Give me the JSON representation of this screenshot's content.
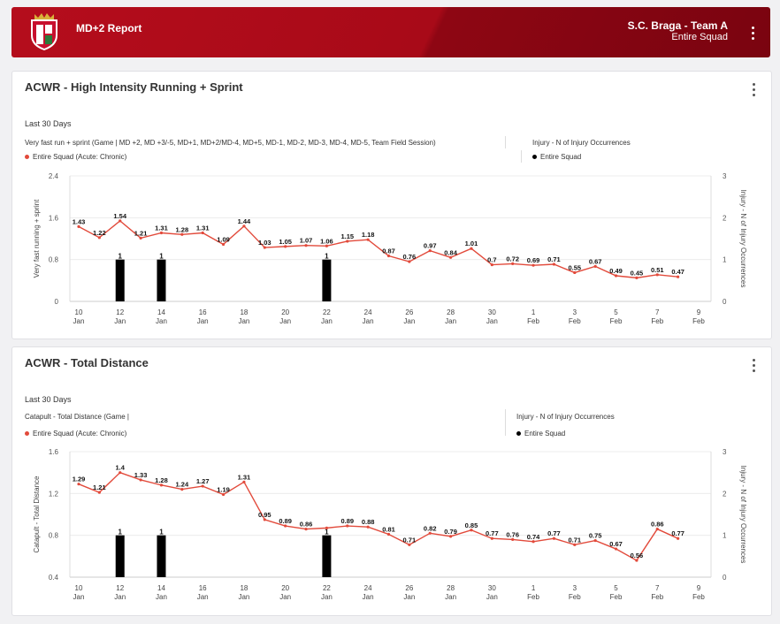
{
  "header": {
    "title": "MD+2 Report",
    "team": "S.C. Braga - Team A",
    "squad": "Entire Squad"
  },
  "colors": {
    "header_red": "#b50d1c",
    "series_line": "#e24a3b",
    "bar": "#000000"
  },
  "icons": {
    "crest": "club-crest-icon",
    "menu": "kebab-menu-icon"
  },
  "cards": [
    {
      "title": "ACWR - High Intensity Running + Sprint",
      "period": "Last 30 Days",
      "metric_desc": "Very fast run + sprint (Game | MD +2, MD +3/-5, MD+1, MD+2/MD-4, MD+5, MD-1, MD-2, MD-3, MD-4, MD-5, Team Field Session)",
      "legend_left": "Entire Squad (Acute: Chronic)",
      "injury_title": "Injury - N of Injury Occurrences",
      "legend_right": "Entire Squad"
    },
    {
      "title": "ACWR - Total Distance",
      "period": "Last 30 Days",
      "metric_desc": "Catapult - Total Distance (Game |",
      "legend_left": "Entire Squad (Acute: Chronic)",
      "injury_title": "Injury - N of Injury Occurrences",
      "legend_right": "Entire Squad"
    }
  ],
  "chart_data": [
    {
      "type": "line",
      "ylabel": "Very fast running + sprint",
      "y2label": "Injury - N of Injury Occurrences",
      "ylim": [
        0,
        2.4
      ],
      "yticks": [
        "0",
        "0.8",
        "1.6",
        "2.4"
      ],
      "y2lim": [
        0,
        3
      ],
      "y2ticks": [
        "0",
        "1",
        "2",
        "3"
      ],
      "xticks": [
        [
          "10",
          "Jan"
        ],
        [
          "12",
          "Jan"
        ],
        [
          "14",
          "Jan"
        ],
        [
          "16",
          "Jan"
        ],
        [
          "18",
          "Jan"
        ],
        [
          "20",
          "Jan"
        ],
        [
          "22",
          "Jan"
        ],
        [
          "24",
          "Jan"
        ],
        [
          "26",
          "Jan"
        ],
        [
          "28",
          "Jan"
        ],
        [
          "30",
          "Jan"
        ],
        [
          "1",
          "Feb"
        ],
        [
          "3",
          "Feb"
        ],
        [
          "5",
          "Feb"
        ],
        [
          "7",
          "Feb"
        ],
        [
          "9",
          "Feb"
        ]
      ],
      "grid": true,
      "series": [
        {
          "values": [
            {
              "x": "2024-01-10",
              "y": 1.43,
              "label": "1.43"
            },
            {
              "x": "2024-01-11",
              "y": 1.22,
              "label": "1.22"
            },
            {
              "x": "2024-01-12",
              "y": 1.54,
              "label": "1.54"
            },
            {
              "x": "2024-01-13",
              "y": 1.21,
              "label": "1.21"
            },
            {
              "x": "2024-01-14",
              "y": 1.31,
              "label": "1.31"
            },
            {
              "x": "2024-01-15",
              "y": 1.28,
              "label": "1.28"
            },
            {
              "x": "2024-01-16",
              "y": 1.31,
              "label": "1.31"
            },
            {
              "x": "2024-01-17",
              "y": 1.09,
              "label": "1.09"
            },
            {
              "x": "2024-01-18",
              "y": 1.44,
              "label": "1.44"
            },
            {
              "x": "2024-01-19",
              "y": 1.03,
              "label": "1.03"
            },
            {
              "x": "2024-01-20",
              "y": 1.05,
              "label": "1.05"
            },
            {
              "x": "2024-01-21",
              "y": 1.07,
              "label": "1.07"
            },
            {
              "x": "2024-01-22",
              "y": 1.06,
              "label": "1.06"
            },
            {
              "x": "2024-01-23",
              "y": 1.15,
              "label": "1.15"
            },
            {
              "x": "2024-01-24",
              "y": 1.18,
              "label": "1.18"
            },
            {
              "x": "2024-01-25",
              "y": 0.87,
              "label": "0.87"
            },
            {
              "x": "2024-01-26",
              "y": 0.76,
              "label": "0.76"
            },
            {
              "x": "2024-01-27",
              "y": 0.97,
              "label": "0.97"
            },
            {
              "x": "2024-01-28",
              "y": 0.84,
              "label": "0.84"
            },
            {
              "x": "2024-01-29",
              "y": 1.01,
              "label": "1.01"
            },
            {
              "x": "2024-01-30",
              "y": 0.7,
              "label": "0.7"
            },
            {
              "x": "2024-01-31",
              "y": 0.72,
              "label": "0.72"
            },
            {
              "x": "2024-02-01",
              "y": 0.69,
              "label": "0.69"
            },
            {
              "x": "2024-02-02",
              "y": 0.71,
              "label": "0.71"
            },
            {
              "x": "2024-02-03",
              "y": 0.55,
              "label": "0.55"
            },
            {
              "x": "2024-02-04",
              "y": 0.67,
              "label": "0.67"
            },
            {
              "x": "2024-02-05",
              "y": 0.49,
              "label": "0.49"
            },
            {
              "x": "2024-02-06",
              "y": 0.45,
              "label": "0.45"
            },
            {
              "x": "2024-02-07",
              "y": 0.51,
              "label": "0.51"
            },
            {
              "x": "2024-02-08",
              "y": 0.47,
              "label": "0.47"
            }
          ]
        }
      ],
      "bars": [
        {
          "x": "2024-01-12",
          "y": 1,
          "label": "1"
        },
        {
          "x": "2024-01-14",
          "y": 1,
          "label": "1"
        },
        {
          "x": "2024-01-22",
          "y": 1,
          "label": "1"
        }
      ]
    },
    {
      "type": "line",
      "ylabel": "Catapult - Total Distance",
      "y2label": "Injury - N of Injury Occurrences",
      "ylim": [
        0.4,
        1.6
      ],
      "yticks": [
        "0.4",
        "0.8",
        "1.2",
        "1.6"
      ],
      "y2lim": [
        0,
        3
      ],
      "y2ticks": [
        "0",
        "1",
        "2",
        "3"
      ],
      "xticks": [
        [
          "10",
          "Jan"
        ],
        [
          "12",
          "Jan"
        ],
        [
          "14",
          "Jan"
        ],
        [
          "16",
          "Jan"
        ],
        [
          "18",
          "Jan"
        ],
        [
          "20",
          "Jan"
        ],
        [
          "22",
          "Jan"
        ],
        [
          "24",
          "Jan"
        ],
        [
          "26",
          "Jan"
        ],
        [
          "28",
          "Jan"
        ],
        [
          "30",
          "Jan"
        ],
        [
          "1",
          "Feb"
        ],
        [
          "3",
          "Feb"
        ],
        [
          "5",
          "Feb"
        ],
        [
          "7",
          "Feb"
        ],
        [
          "9",
          "Feb"
        ]
      ],
      "grid": true,
      "series": [
        {
          "values": [
            {
              "x": "2024-01-10",
              "y": 1.29,
              "label": "1.29"
            },
            {
              "x": "2024-01-11",
              "y": 1.21,
              "label": "1.21"
            },
            {
              "x": "2024-01-12",
              "y": 1.4,
              "label": "1.4"
            },
            {
              "x": "2024-01-13",
              "y": 1.33,
              "label": "1.33"
            },
            {
              "x": "2024-01-14",
              "y": 1.28,
              "label": "1.28"
            },
            {
              "x": "2024-01-15",
              "y": 1.24,
              "label": "1.24"
            },
            {
              "x": "2024-01-16",
              "y": 1.27,
              "label": "1.27"
            },
            {
              "x": "2024-01-17",
              "y": 1.19,
              "label": "1.19"
            },
            {
              "x": "2024-01-18",
              "y": 1.31,
              "label": "1.31"
            },
            {
              "x": "2024-01-19",
              "y": 0.95,
              "label": "0.95"
            },
            {
              "x": "2024-01-20",
              "y": 0.89,
              "label": "0.89"
            },
            {
              "x": "2024-01-21",
              "y": 0.86,
              "label": "0.86"
            },
            {
              "x": "2024-01-22",
              "y": 0.87,
              "label": ""
            },
            {
              "x": "2024-01-23",
              "y": 0.89,
              "label": "0.89"
            },
            {
              "x": "2024-01-24",
              "y": 0.88,
              "label": "0.88"
            },
            {
              "x": "2024-01-25",
              "y": 0.81,
              "label": "0.81"
            },
            {
              "x": "2024-01-26",
              "y": 0.71,
              "label": "0.71"
            },
            {
              "x": "2024-01-27",
              "y": 0.82,
              "label": "0.82"
            },
            {
              "x": "2024-01-28",
              "y": 0.79,
              "label": "0.79"
            },
            {
              "x": "2024-01-29",
              "y": 0.85,
              "label": "0.85"
            },
            {
              "x": "2024-01-30",
              "y": 0.77,
              "label": "0.77"
            },
            {
              "x": "2024-01-31",
              "y": 0.76,
              "label": "0.76"
            },
            {
              "x": "2024-02-01",
              "y": 0.74,
              "label": "0.74"
            },
            {
              "x": "2024-02-02",
              "y": 0.77,
              "label": "0.77"
            },
            {
              "x": "2024-02-03",
              "y": 0.71,
              "label": "0.71"
            },
            {
              "x": "2024-02-04",
              "y": 0.75,
              "label": "0.75"
            },
            {
              "x": "2024-02-05",
              "y": 0.67,
              "label": "0.67"
            },
            {
              "x": "2024-02-06",
              "y": 0.56,
              "label": "0.56"
            },
            {
              "x": "2024-02-07",
              "y": 0.86,
              "label": "0.86"
            },
            {
              "x": "2024-02-08",
              "y": 0.77,
              "label": "0.77"
            }
          ]
        }
      ],
      "bars": [
        {
          "x": "2024-01-12",
          "y": 1,
          "label": "1"
        },
        {
          "x": "2024-01-14",
          "y": 1,
          "label": "1"
        },
        {
          "x": "2024-01-22",
          "y": 1,
          "label": "1"
        }
      ]
    }
  ]
}
